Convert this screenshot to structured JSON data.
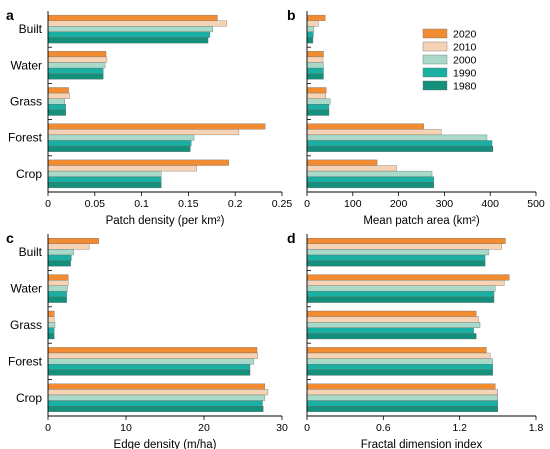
{
  "legend": {
    "position": "top-right of panel b",
    "items": [
      {
        "label": "2020",
        "color": "#f28c33"
      },
      {
        "label": "2010",
        "color": "#f6d3b4"
      },
      {
        "label": "2000",
        "color": "#a8d9c9"
      },
      {
        "label": "1990",
        "color": "#19b0a3"
      },
      {
        "label": "1980",
        "color": "#138f7c"
      }
    ]
  },
  "chart_data": [
    {
      "panel": "a",
      "type": "bar",
      "orientation": "horizontal",
      "categories": [
        "Built",
        "Water",
        "Grass",
        "Forest",
        "Crop"
      ],
      "xlabel": "Patch density (per km²)",
      "xlim": [
        0,
        0.25
      ],
      "xticks": [
        "0",
        "0.05",
        "0.1",
        "0.15",
        "0.2",
        "0.25"
      ],
      "series": [
        {
          "name": "2020",
          "values": [
            0.181,
            0.062,
            0.022,
            0.232,
            0.193
          ]
        },
        {
          "name": "2010",
          "values": [
            0.191,
            0.063,
            0.023,
            0.204,
            0.159
          ]
        },
        {
          "name": "2000",
          "values": [
            0.176,
            0.061,
            0.018,
            0.156,
            0.121
          ]
        },
        {
          "name": "1990",
          "values": [
            0.173,
            0.059,
            0.019,
            0.153,
            0.121
          ]
        },
        {
          "name": "1980",
          "values": [
            0.171,
            0.059,
            0.019,
            0.152,
            0.121
          ]
        }
      ]
    },
    {
      "panel": "b",
      "type": "bar",
      "orientation": "horizontal",
      "categories": [
        "Built",
        "Water",
        "Grass",
        "Forest",
        "Crop"
      ],
      "xlabel": "Mean patch area (km²)",
      "xlim": [
        0,
        500
      ],
      "xticks": [
        "0",
        "100",
        "200",
        "300",
        "400",
        "500"
      ],
      "series": [
        {
          "name": "2020",
          "values": [
            40,
            36,
            42,
            255,
            153
          ]
        },
        {
          "name": "2010",
          "values": [
            25,
            35,
            41,
            293,
            196
          ]
        },
        {
          "name": "2000",
          "values": [
            15,
            36,
            51,
            393,
            273
          ]
        },
        {
          "name": "1990",
          "values": [
            14,
            36,
            48,
            404,
            277
          ]
        },
        {
          "name": "1980",
          "values": [
            13,
            36,
            48,
            406,
            277
          ]
        }
      ]
    },
    {
      "panel": "c",
      "type": "bar",
      "orientation": "horizontal",
      "categories": [
        "Built",
        "Water",
        "Grass",
        "Forest",
        "Crop"
      ],
      "xlabel": "Edge density (m/ha)",
      "xlim": [
        0,
        30
      ],
      "xticks": [
        "0",
        "10",
        "20",
        "30"
      ],
      "series": [
        {
          "name": "2020",
          "values": [
            6.5,
            2.6,
            0.8,
            26.8,
            27.8
          ]
        },
        {
          "name": "2010",
          "values": [
            5.3,
            2.6,
            0.8,
            26.9,
            28.2
          ]
        },
        {
          "name": "2000",
          "values": [
            3.3,
            2.5,
            0.9,
            26.4,
            27.8
          ]
        },
        {
          "name": "1990",
          "values": [
            3.0,
            2.4,
            0.8,
            25.9,
            27.5
          ]
        },
        {
          "name": "1980",
          "values": [
            2.9,
            2.4,
            0.8,
            25.9,
            27.6
          ]
        }
      ]
    },
    {
      "panel": "d",
      "type": "bar",
      "orientation": "horizontal",
      "categories": [
        "Built",
        "Water",
        "Grass",
        "Forest",
        "Crop"
      ],
      "xlabel": "Fractal dimension index",
      "xlim": [
        0,
        1.8
      ],
      "xticks": [
        "0",
        "0.6",
        "1.2",
        "1.8"
      ],
      "series": [
        {
          "name": "2020",
          "values": [
            1.56,
            1.59,
            1.33,
            1.41,
            1.48
          ]
        },
        {
          "name": "2010",
          "values": [
            1.53,
            1.55,
            1.35,
            1.44,
            1.5
          ]
        },
        {
          "name": "2000",
          "values": [
            1.43,
            1.48,
            1.36,
            1.46,
            1.5
          ]
        },
        {
          "name": "1990",
          "values": [
            1.4,
            1.47,
            1.31,
            1.46,
            1.5
          ]
        },
        {
          "name": "1980",
          "values": [
            1.4,
            1.47,
            1.33,
            1.46,
            1.5
          ]
        }
      ]
    }
  ]
}
